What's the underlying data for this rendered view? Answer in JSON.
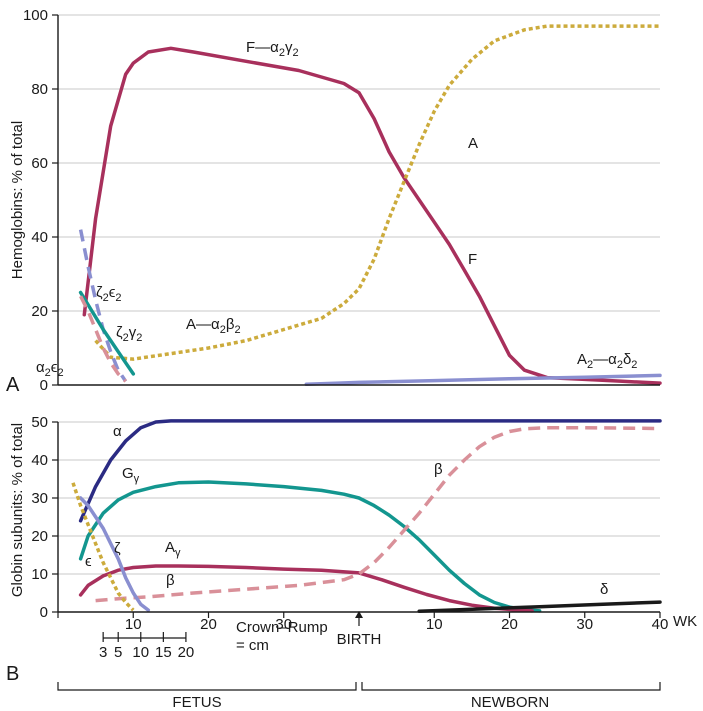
{
  "colors": {
    "crimson": "#a8305c",
    "teal": "#13968f",
    "gold": "#ccab3c",
    "lavender": "#8a8fd0",
    "navy": "#2b2b83",
    "pink": "#d99099",
    "black": "#1a1a1a",
    "grid": "#c8c8c8"
  },
  "panel_a": {
    "letter": "A",
    "ylabel": "Hemoglobins: % of total",
    "labels": {
      "hbf": {
        "main": "F—α",
        "s1": "2",
        "mid": "γ",
        "s2": "2"
      },
      "hba": {
        "main": "A—α",
        "s1": "2",
        "mid": "β",
        "s2": "2"
      },
      "hba2": {
        "main": "A",
        "s0": "2",
        "mid": "—α",
        "s1": "2",
        "mid2": "δ",
        "s2": "2"
      },
      "a_late": "A",
      "f_late": "F",
      "zeta_eps": {
        "a": "ζ",
        "s1": "2",
        "b": "ϵ",
        "s2": "2"
      },
      "zeta_gam": {
        "a": "ζ",
        "s1": "2",
        "b": "γ",
        "s2": "2"
      },
      "alpha_eps": {
        "a": "α",
        "s1": "2",
        "b": "ϵ",
        "s2": "2"
      }
    }
  },
  "panel_b": {
    "letter": "B",
    "ylabel": "Globin subunits: % of total",
    "labels": {
      "alpha": "α",
      "g_gamma": {
        "a": "G",
        "b": "γ"
      },
      "a_gamma": {
        "a": "A",
        "b": "γ"
      },
      "zeta": "ζ",
      "epsilon": "ϵ",
      "beta_late": "β",
      "beta_early": "β",
      "delta": "δ"
    },
    "wk_label": "WK",
    "birth_label": "BIRTH",
    "crown_rump": {
      "label": "Crown–Rump",
      "unit": "= cm",
      "ticks": [
        "3",
        "5",
        "10",
        "15",
        "20"
      ]
    },
    "periods": {
      "fetus": "FETUS",
      "newborn": "NEWBORN"
    }
  },
  "chart_data": [
    {
      "type": "line",
      "panel": "A",
      "ylabel": "Hemoglobins: % of total",
      "ylim": [
        0,
        100
      ],
      "yticks": [
        0,
        20,
        40,
        60,
        80,
        100
      ],
      "x_note": "fetal weeks 0–40 then newborn weeks after birth (birth = fetal week 40); newborn weeks stored as 40 + week",
      "xlim": [
        0,
        80
      ],
      "grid": true,
      "series": [
        {
          "name": "F—α2γ2",
          "color": "crimson",
          "dash": "solid",
          "x": [
            3.5,
            5,
            7,
            9,
            10,
            12,
            15,
            18,
            25,
            32,
            38,
            40,
            42,
            44,
            46,
            48,
            50,
            52,
            54,
            56,
            58,
            60,
            62,
            65,
            70,
            75,
            80
          ],
          "y": [
            19,
            45,
            70,
            84,
            87,
            90,
            91,
            90,
            87.5,
            85,
            81.5,
            79,
            72,
            63,
            56,
            50,
            44,
            38,
            31,
            24,
            16,
            8,
            4,
            2,
            1.5,
            1,
            0.5
          ]
        },
        {
          "name": "A—α2β2",
          "color": "gold",
          "dash": "dotted",
          "x": [
            5,
            7,
            10,
            15,
            20,
            25,
            30,
            35,
            38,
            40,
            42,
            44,
            46,
            48,
            50,
            52,
            55,
            58,
            62,
            65,
            70,
            75,
            80
          ],
          "y": [
            12,
            7.5,
            7,
            8.5,
            10,
            12,
            15,
            18,
            22,
            26,
            34,
            45,
            55,
            65,
            74,
            81,
            88,
            93,
            96,
            97,
            97,
            97,
            97
          ]
        },
        {
          "name": "A2—α2δ2",
          "color": "lavender",
          "dash": "solid",
          "x": [
            33,
            40,
            50,
            60,
            70,
            80
          ],
          "y": [
            0.2,
            0.7,
            1.2,
            1.7,
            2.1,
            2.6
          ]
        },
        {
          "name": "ζ2ϵ2",
          "color": "lavender",
          "dash": "dashed",
          "x": [
            3,
            4,
            5,
            6,
            7,
            8,
            9
          ],
          "y": [
            42,
            32,
            23,
            15,
            9,
            4,
            1
          ]
        },
        {
          "name": "ζ2γ2",
          "color": "teal",
          "dash": "solid",
          "x": [
            3,
            4.5,
            6,
            7,
            8,
            9,
            10
          ],
          "y": [
            25,
            20,
            15,
            12,
            9,
            6,
            3
          ]
        },
        {
          "name": "α2ϵ2",
          "color": "pink",
          "dash": "dashed",
          "x": [
            3,
            4,
            5,
            6,
            7,
            8,
            9
          ],
          "y": [
            24,
            20,
            15,
            10,
            6,
            3,
            1
          ]
        }
      ]
    },
    {
      "type": "line",
      "panel": "B",
      "ylabel": "Globin subunits: % of total",
      "ylim": [
        0,
        50
      ],
      "yticks": [
        0,
        10,
        20,
        30,
        40,
        50
      ],
      "xlim": [
        0,
        80
      ],
      "xticks": [
        {
          "x": 0,
          "label": ""
        },
        {
          "x": 10,
          "label": "10"
        },
        {
          "x": 20,
          "label": "20"
        },
        {
          "x": 30,
          "label": "30"
        },
        {
          "x": 40,
          "label": "BIRTH"
        },
        {
          "x": 50,
          "label": "10"
        },
        {
          "x": 60,
          "label": "20"
        },
        {
          "x": 70,
          "label": "30"
        },
        {
          "x": 80,
          "label": "40"
        }
      ],
      "xlabel": "WK",
      "grid": true,
      "crown_rump_cm": [
        {
          "week": 6,
          "cm": 3
        },
        {
          "week": 8,
          "cm": 5
        },
        {
          "week": 11,
          "cm": 10
        },
        {
          "week": 14,
          "cm": 15
        },
        {
          "week": 17,
          "cm": 20
        }
      ],
      "series": [
        {
          "name": "α",
          "color": "navy",
          "dash": "solid",
          "x": [
            3,
            5,
            7,
            9,
            11,
            13,
            15,
            20,
            30,
            40,
            50,
            60,
            70,
            80
          ],
          "y": [
            24,
            33,
            40,
            45,
            48.5,
            50,
            50.3,
            50.3,
            50.3,
            50.3,
            50.3,
            50.3,
            50.3,
            50.3
          ]
        },
        {
          "name": "Gγ",
          "color": "teal",
          "dash": "solid",
          "x": [
            3,
            4,
            6,
            8,
            10,
            13,
            16,
            20,
            25,
            30,
            35,
            38,
            40,
            42,
            44,
            46,
            48,
            50,
            52,
            54,
            56,
            58,
            60,
            62,
            64
          ],
          "y": [
            14,
            20,
            26,
            29.5,
            31.5,
            33,
            34,
            34.2,
            33.7,
            33,
            32,
            31,
            30,
            28,
            25.5,
            22.5,
            19,
            15,
            11,
            7.5,
            4.5,
            2.5,
            1.3,
            0.6,
            0.3
          ]
        },
        {
          "name": "Aγ",
          "color": "crimson",
          "dash": "solid",
          "x": [
            3,
            4,
            6,
            8,
            10,
            13,
            16,
            20,
            25,
            30,
            35,
            40,
            43,
            46,
            49,
            52,
            55,
            58,
            61,
            63
          ],
          "y": [
            4.5,
            7,
            9.5,
            11,
            11.7,
            12.1,
            12.1,
            12,
            11.7,
            11.3,
            11,
            10.3,
            8.5,
            6.5,
            4.6,
            3,
            1.8,
            1,
            0.5,
            0.3
          ]
        },
        {
          "name": "β",
          "color": "pink",
          "dash": "dashed",
          "x": [
            5,
            8,
            12,
            18,
            25,
            32,
            38,
            40,
            42,
            44,
            46,
            48,
            50,
            52,
            54,
            56,
            58,
            60,
            62,
            65,
            70,
            75,
            80
          ],
          "y": [
            3,
            3.5,
            4,
            5,
            6,
            7,
            8.5,
            10,
            13,
            17,
            21.5,
            26,
            31,
            36,
            40,
            43.5,
            46,
            47.5,
            48.2,
            48.5,
            48.5,
            48.4,
            48.3
          ]
        },
        {
          "name": "ζ",
          "color": "lavender",
          "dash": "solid",
          "x": [
            3,
            4,
            6,
            8,
            9,
            10,
            11,
            12
          ],
          "y": [
            30,
            28,
            22,
            14,
            9,
            5,
            2,
            0.5
          ]
        },
        {
          "name": "ϵ",
          "color": "gold",
          "dash": "dotted",
          "x": [
            2,
            3,
            4,
            5,
            6,
            7,
            8,
            9,
            10
          ],
          "y": [
            34,
            28,
            23,
            18,
            13,
            9,
            5,
            2.5,
            0.5
          ]
        },
        {
          "name": "δ",
          "color": "black",
          "dash": "solid",
          "x": [
            48,
            56,
            64,
            72,
            80
          ],
          "y": [
            0.2,
            0.8,
            1.4,
            2,
            2.6
          ]
        }
      ]
    }
  ]
}
